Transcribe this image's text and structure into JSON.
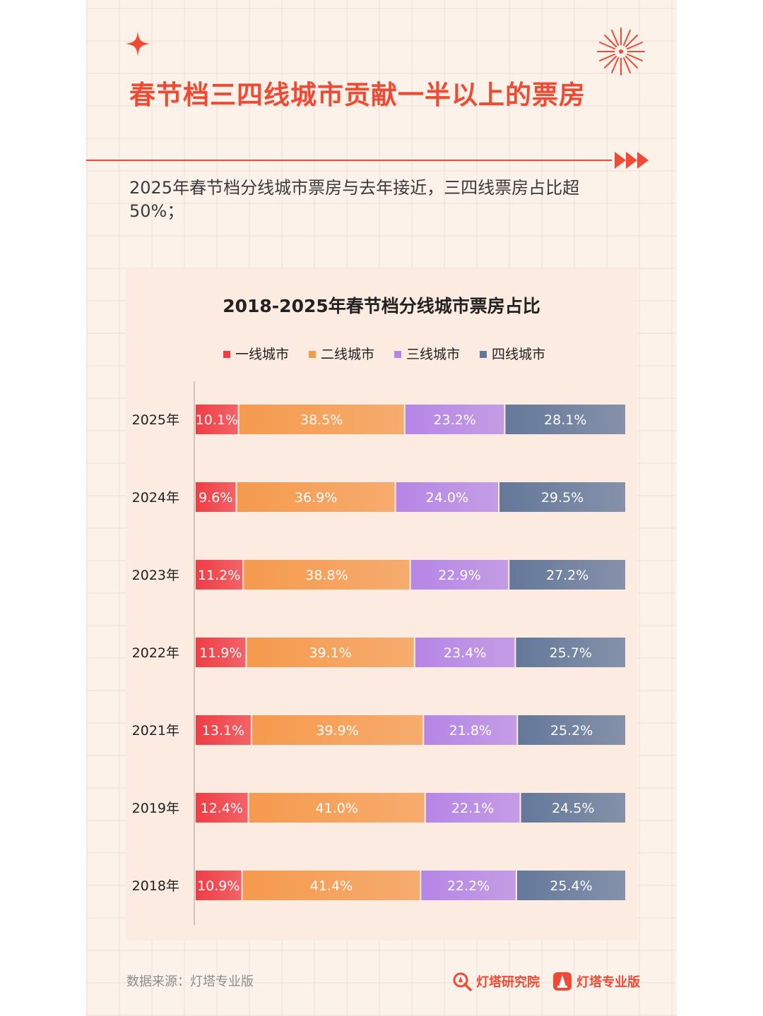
{
  "header": {
    "title": "春节档三四线城市贡献一半以上的票房",
    "subtitle": "2025年春节档分线城市票房与去年接近，三四线票房占比超50%；"
  },
  "chart_data": {
    "type": "bar",
    "orientation": "horizontal",
    "stacked": true,
    "title": "2018-2025年春节档分线城市票房占比",
    "xlabel": "",
    "ylabel": "",
    "legend_position": "top",
    "grid": false,
    "categories": [
      "2025年",
      "2024年",
      "2023年",
      "2022年",
      "2021年",
      "2019年",
      "2018年"
    ],
    "series": [
      {
        "name": "一线城市",
        "color": "#ef3d45",
        "values": [
          10.1,
          9.6,
          11.2,
          11.9,
          13.1,
          12.4,
          10.9
        ],
        "labels": [
          "10.1%",
          "9.6%",
          "11.2%",
          "11.9%",
          "13.1%",
          "12.4%",
          "10.9%"
        ]
      },
      {
        "name": "二线城市",
        "color": "#f59a4e",
        "values": [
          38.5,
          36.9,
          38.8,
          39.1,
          39.9,
          41.0,
          41.4
        ],
        "labels": [
          "38.5%",
          "36.9%",
          "38.8%",
          "39.1%",
          "39.9%",
          "41.0%",
          "41.4%"
        ]
      },
      {
        "name": "三线城市",
        "color": "#b586e6",
        "values": [
          23.2,
          24.0,
          22.9,
          23.4,
          21.8,
          22.1,
          22.2
        ],
        "labels": [
          "23.2%",
          "24.0%",
          "22.9%",
          "23.4%",
          "21.8%",
          "22.1%",
          "22.2%"
        ]
      },
      {
        "name": "四线城市",
        "color": "#64789a",
        "values": [
          28.1,
          29.5,
          27.2,
          25.7,
          25.2,
          24.5,
          25.4
        ],
        "labels": [
          "28.1%",
          "29.5%",
          "27.2%",
          "25.7%",
          "25.2%",
          "24.5%",
          "25.4%"
        ]
      }
    ]
  },
  "footer": {
    "source": "数据来源：灯塔专业版",
    "brand_research": "灯塔研究院",
    "brand_pro": "灯塔专业版"
  },
  "colors": {
    "accent": "#ef4b34"
  },
  "icons": [
    "sparkle-icon",
    "firework-icon",
    "arrow-right-icon",
    "dengta-research-logo-icon",
    "dengta-pro-logo-icon"
  ]
}
